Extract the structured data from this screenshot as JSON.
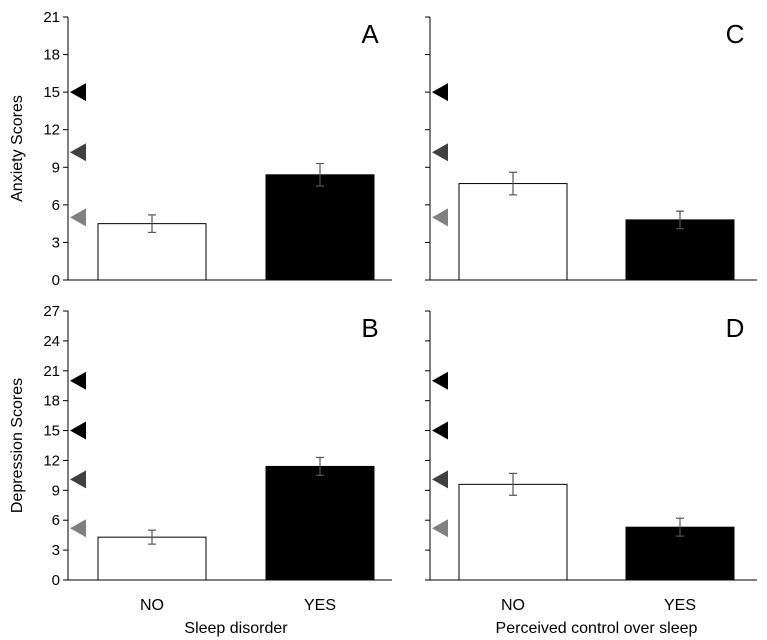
{
  "chart_data": [
    {
      "type": "bar",
      "panel": "A",
      "categories": [
        "NO",
        "YES"
      ],
      "values": [
        4.5,
        8.4
      ],
      "error": [
        0.7,
        0.9
      ],
      "colors": [
        "#ffffff",
        "#000000"
      ],
      "ylabel": "Anxiety Scores",
      "xlabel": "",
      "ylim": [
        0,
        21
      ],
      "yticks": [
        0,
        3,
        6,
        9,
        12,
        15,
        18,
        21
      ],
      "thresholds": [
        {
          "value": 5,
          "color": "#808080"
        },
        {
          "value": 10.2,
          "color": "#404040"
        },
        {
          "value": 15,
          "color": "#000000"
        }
      ]
    },
    {
      "type": "bar",
      "panel": "B",
      "categories": [
        "NO",
        "YES"
      ],
      "values": [
        4.3,
        11.4
      ],
      "error": [
        0.7,
        0.9
      ],
      "colors": [
        "#ffffff",
        "#000000"
      ],
      "ylabel": "Depression Scores",
      "xlabel": "Sleep disorder",
      "ylim": [
        0,
        27
      ],
      "yticks": [
        0,
        3,
        6,
        9,
        12,
        15,
        18,
        21,
        24,
        27
      ],
      "thresholds": [
        {
          "value": 5.2,
          "color": "#808080"
        },
        {
          "value": 10.1,
          "color": "#404040"
        },
        {
          "value": 15,
          "color": "#000000"
        },
        {
          "value": 20,
          "color": "#000000"
        }
      ]
    },
    {
      "type": "bar",
      "panel": "C",
      "categories": [
        "NO",
        "YES"
      ],
      "values": [
        7.7,
        4.8
      ],
      "error": [
        0.9,
        0.7
      ],
      "colors": [
        "#ffffff",
        "#000000"
      ],
      "ylabel": "",
      "xlabel": "",
      "ylim": [
        0,
        21
      ],
      "yticks": [
        0,
        3,
        6,
        9,
        12,
        15,
        18,
        21
      ],
      "thresholds": [
        {
          "value": 5,
          "color": "#808080"
        },
        {
          "value": 10.2,
          "color": "#404040"
        },
        {
          "value": 15,
          "color": "#000000"
        }
      ]
    },
    {
      "type": "bar",
      "panel": "D",
      "categories": [
        "NO",
        "YES"
      ],
      "values": [
        9.6,
        5.3
      ],
      "error": [
        1.1,
        0.9
      ],
      "colors": [
        "#ffffff",
        "#000000"
      ],
      "ylabel": "",
      "xlabel": "Perceived control over sleep",
      "ylim": [
        0,
        27
      ],
      "yticks": [
        0,
        3,
        6,
        9,
        12,
        15,
        18,
        21,
        24,
        27
      ],
      "thresholds": [
        {
          "value": 5.2,
          "color": "#808080"
        },
        {
          "value": 10.1,
          "color": "#404040"
        },
        {
          "value": 15,
          "color": "#000000"
        },
        {
          "value": 20,
          "color": "#000000"
        }
      ]
    }
  ]
}
